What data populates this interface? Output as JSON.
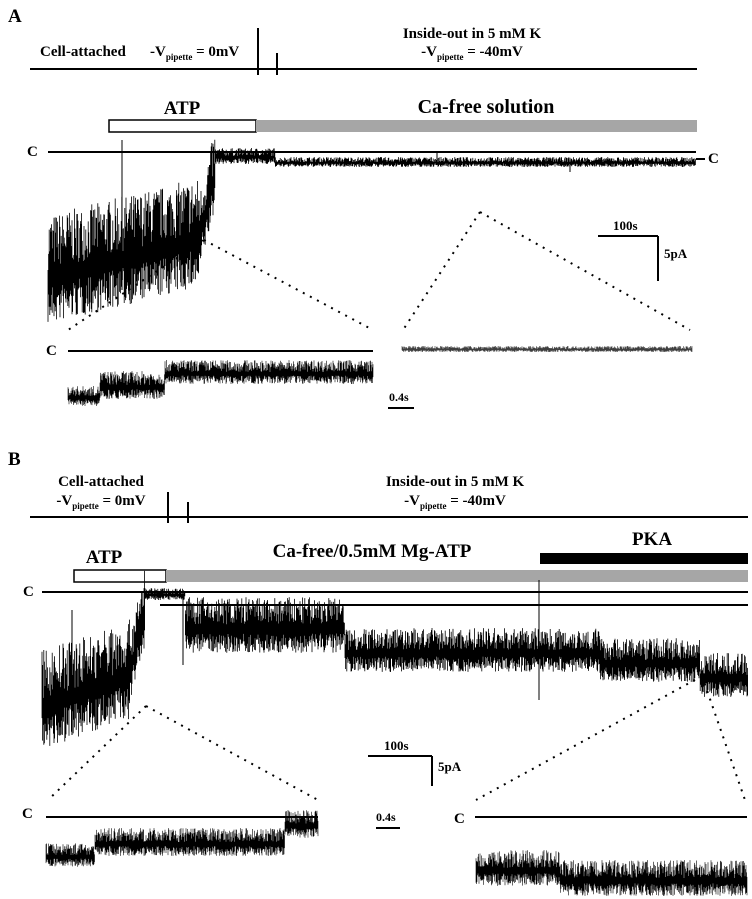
{
  "panel_a": {
    "letter": "A",
    "protocol": {
      "left_label": "Cell-attached",
      "left_voltage": "-V<sub>pipette</sub> = 0mV",
      "right_label": "Inside-out in 5 mM K",
      "right_voltage": "-V<sub>pipette</sub> = -40mV"
    },
    "bar_atp": "ATP",
    "bar_solution": "Ca-free solution",
    "closed_left": "C",
    "closed_right": "C",
    "scale_time": "100s",
    "scale_current": "5pA",
    "expanded_closed": "C",
    "expanded_scale": "0.4s"
  },
  "panel_b": {
    "letter": "B",
    "protocol": {
      "left_label": "Cell-attached",
      "left_voltage": "-V<sub>pipette</sub> = 0mV",
      "right_label": "Inside-out in 5 mM K",
      "right_voltage": "-V<sub>pipette</sub> = -40mV"
    },
    "bar_atp": "ATP",
    "bar_solution": "Ca-free/0.5mM Mg-ATP",
    "bar_pka": "PKA",
    "closed_left": "C",
    "scale_time": "100s",
    "scale_current": "5pA",
    "expanded_closed_left": "C",
    "expanded_scale": "0.4s",
    "expanded_closed_right": "C"
  },
  "colors": {
    "trace": "#000000",
    "solution_bar": "#a6a6a6",
    "pka_bar": "#000000",
    "atp_bar_fill": "#ffffff"
  }
}
